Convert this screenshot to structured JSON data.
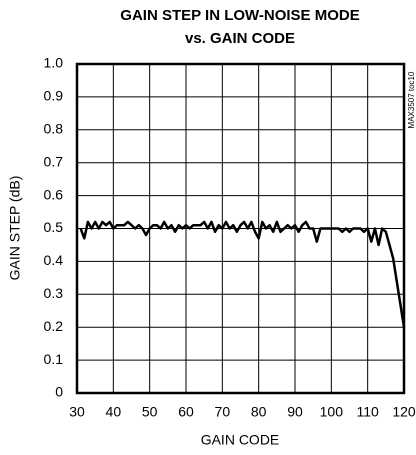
{
  "chart_data": {
    "type": "line",
    "title": "GAIN STEP IN LOW-NOISE MODE",
    "subtitle": "vs. GAIN CODE",
    "xlabel": "GAIN CODE",
    "ylabel": "GAIN STEP (dB)",
    "annotation": "MAX3507 toc10",
    "color": "#000000",
    "grid": true,
    "xlim": [
      30,
      120
    ],
    "xticks": [
      30,
      40,
      50,
      60,
      70,
      80,
      90,
      100,
      110,
      120
    ],
    "ylim": [
      0,
      1
    ],
    "yticks": [
      0,
      0.1,
      0.2,
      0.3,
      0.4,
      0.5,
      0.6,
      0.7,
      0.8,
      0.9,
      {
        "value": 1,
        "label": "1.0"
      }
    ],
    "x": [
      31,
      32,
      33,
      34,
      35,
      36,
      37,
      38,
      39,
      40,
      41,
      42,
      43,
      44,
      45,
      46,
      47,
      48,
      49,
      50,
      51,
      52,
      53,
      54,
      55,
      56,
      57,
      58,
      59,
      60,
      61,
      62,
      63,
      64,
      65,
      66,
      67,
      68,
      69,
      70,
      71,
      72,
      73,
      74,
      75,
      76,
      77,
      78,
      79,
      80,
      81,
      82,
      83,
      84,
      85,
      86,
      87,
      88,
      89,
      90,
      91,
      92,
      93,
      94,
      95,
      96,
      97,
      98,
      99,
      100,
      101,
      102,
      103,
      104,
      105,
      106,
      107,
      108,
      109,
      110,
      111,
      112,
      113,
      114,
      115,
      116,
      117,
      118,
      119,
      120
    ],
    "values": [
      0.5,
      0.47,
      0.52,
      0.5,
      0.52,
      0.5,
      0.52,
      0.51,
      0.52,
      0.5,
      0.51,
      0.51,
      0.51,
      0.52,
      0.51,
      0.5,
      0.51,
      0.5,
      0.48,
      0.5,
      0.51,
      0.51,
      0.5,
      0.52,
      0.5,
      0.51,
      0.49,
      0.51,
      0.5,
      0.51,
      0.5,
      0.51,
      0.51,
      0.51,
      0.52,
      0.5,
      0.52,
      0.49,
      0.51,
      0.5,
      0.52,
      0.5,
      0.51,
      0.49,
      0.51,
      0.52,
      0.5,
      0.52,
      0.49,
      0.47,
      0.52,
      0.5,
      0.51,
      0.49,
      0.52,
      0.49,
      0.5,
      0.51,
      0.5,
      0.51,
      0.49,
      0.51,
      0.52,
      0.5,
      0.5,
      0.46,
      0.5,
      0.5,
      0.5,
      0.5,
      0.5,
      0.5,
      0.49,
      0.5,
      0.49,
      0.5,
      0.5,
      0.5,
      0.49,
      0.5,
      0.46,
      0.5,
      0.45,
      0.5,
      0.49,
      0.45,
      0.41,
      0.34,
      0.27,
      0.2
    ]
  }
}
